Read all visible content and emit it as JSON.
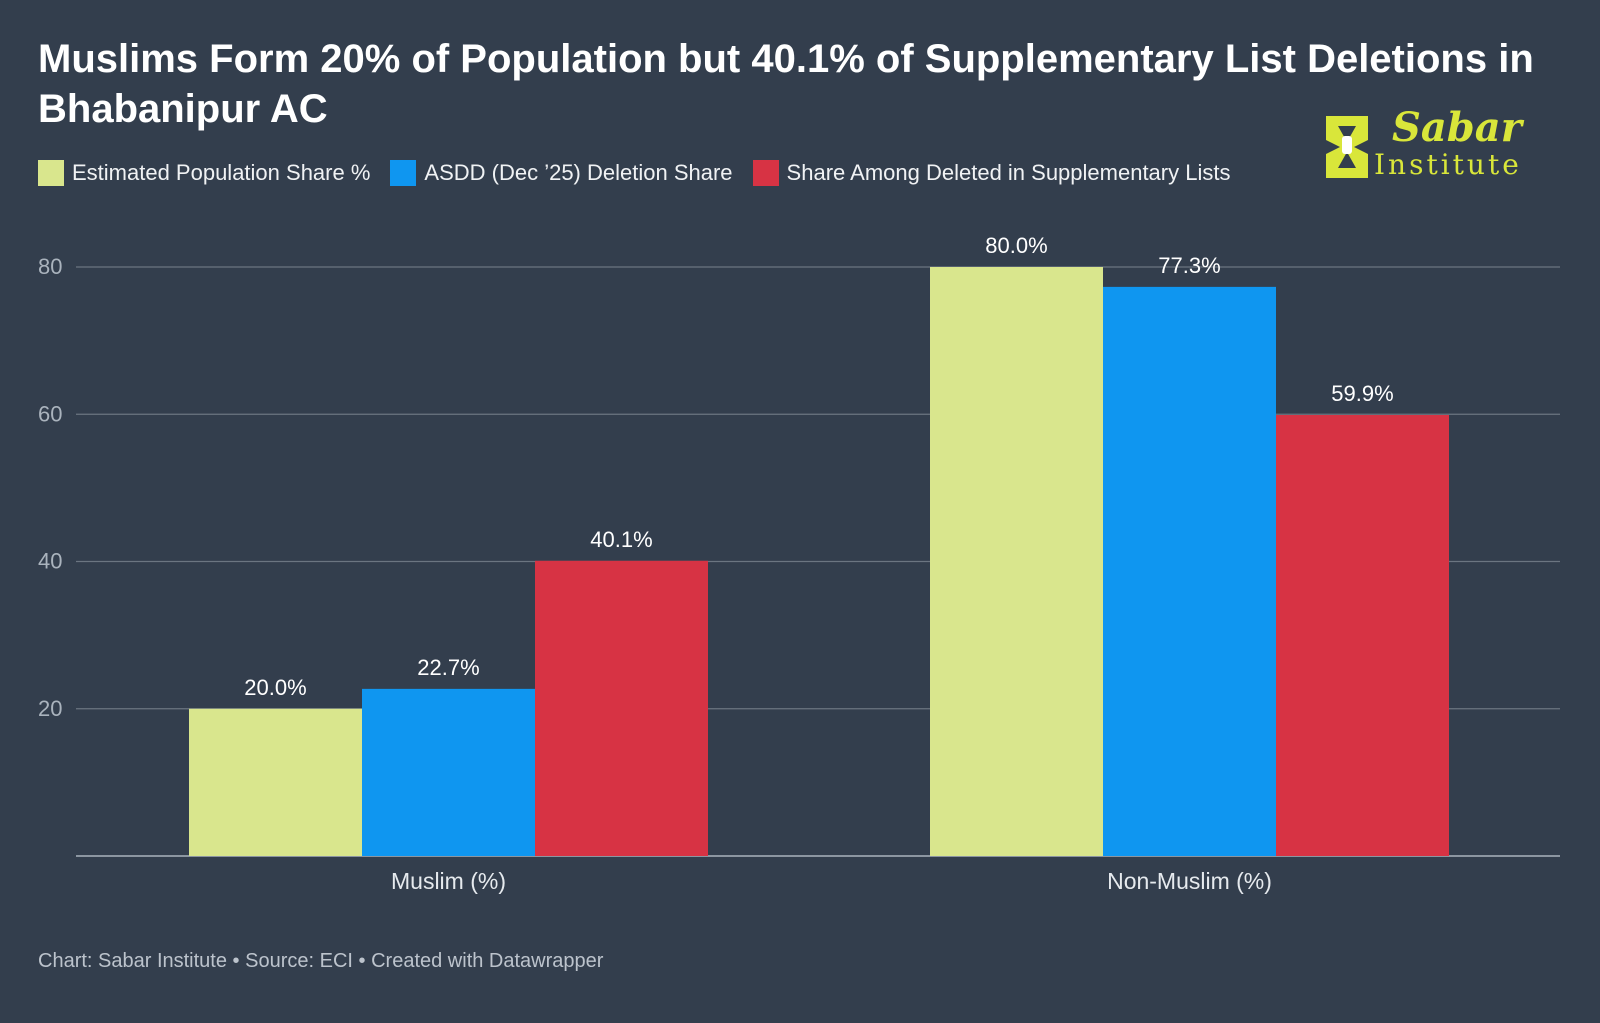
{
  "logo": {
    "line1": "Sabar",
    "line2": "Institute",
    "color": "#d9e63a"
  },
  "footer": {
    "credit": "Chart: Sabar Institute",
    "source": "Source: ECI",
    "tool": "Created with Datawrapper",
    "separator": "•"
  },
  "chart_data": {
    "type": "bar",
    "title": "Muslims Form 20% of Population but 40.1% of Supplementary List Deletions in Bhabanipur AC",
    "categories": [
      "Muslim (%)",
      "Non-Muslim (%)"
    ],
    "series": [
      {
        "name": "Estimated Population Share %",
        "values": [
          20.0,
          80.0
        ],
        "color": "#d9e68d"
      },
      {
        "name": "ASDD (Dec ’25) Deletion Share",
        "values": [
          22.7,
          77.3
        ],
        "color": "#0f96f0"
      },
      {
        "name": "Share Among Deleted in Supplementary Lists",
        "values": [
          40.1,
          59.9
        ],
        "color": "#d73344"
      }
    ],
    "data_labels": [
      [
        "20.0%",
        "80.0%"
      ],
      [
        "22.7%",
        "77.3%"
      ],
      [
        "40.1%",
        "59.9%"
      ]
    ],
    "yticks": [
      20,
      40,
      60,
      80
    ],
    "ylim": [
      0,
      80
    ],
    "xlabel": "",
    "ylabel": "",
    "grid": true,
    "legend_position": "top-left"
  }
}
